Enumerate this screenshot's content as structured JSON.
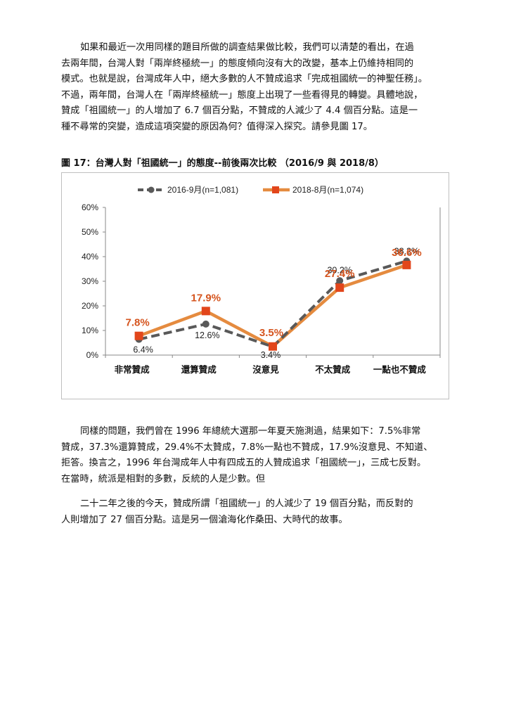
{
  "paragraph1": {
    "lines": [
      "如果和最近一次用同樣的題目所做的調查結果做比較，我們可以清楚的看出，在過",
      "去兩年間，台灣人對「兩岸終極統一」的態度傾向沒有大的改變，基本上仍維持相同的",
      "模式。也就是說，台灣成年人中，絕大多數的人不贊成追求「完成祖國統一的神聖任務」。",
      "不過，兩年間，台灣人在「兩岸終極統一」態度上出現了一些看得見的轉變。具體地說，",
      "贊成「祖國統一」的人增加了 6.7 個百分點，不贊成的人減少了 4.4 個百分點。這是一",
      "種不尋常的突變，造成這項突變的原因為何？值得深入探究。請參見圖 17。"
    ]
  },
  "figure_caption": "圖 17：台灣人對「祖國統一」的態度--前後兩次比較 （2016/9 與 2018/8）",
  "chart_data": {
    "type": "line",
    "categories": [
      "非常贊成",
      "還算贊成",
      "沒意見",
      "不太贊成",
      "一點也不贊成"
    ],
    "series": [
      {
        "name": "2016-9月(n=1,081)",
        "values": [
          6.4,
          12.6,
          3.4,
          30.2,
          38.2
        ],
        "labels": [
          "6.4%",
          "12.6%",
          "3.4%",
          "30.2%",
          "38.2%"
        ],
        "color": "#595959",
        "dash": true
      },
      {
        "name": "2018-8月(n=1,074)",
        "values": [
          7.8,
          17.9,
          3.5,
          27.4,
          36.6
        ],
        "labels": [
          "7.8%",
          "17.9%",
          "3.5%",
          "27.4%",
          "36.6%"
        ],
        "color": "#e58b3f",
        "marker_color": "#e2461b",
        "dash": false
      }
    ],
    "y_ticks": [
      "0%",
      "10%",
      "20%",
      "30%",
      "40%",
      "50%",
      "60%"
    ],
    "ylim": [
      0,
      60
    ],
    "grid": false,
    "legend_position": "top"
  },
  "paragraph2": {
    "lines": [
      "同樣的問題，我們曾在 1996 年總統大選那一年夏天施測過，結果如下：7.5%非常",
      "贊成，37.3%還算贊成，29.4%不太贊成，7.8%一點也不贊成，17.9%沒意見、不知道、",
      "拒答。換言之，1996 年台灣成年人中有四成五的人贊成追求「祖國統一」，三成七反對。",
      "在當時，統派是相對的多數，反統的人是少數。但"
    ]
  },
  "paragraph3": {
    "lines": [
      "二十二年之後的今天，贊成所謂「祖國統一」的人減少了 19 個百分點，而反對的",
      "人則增加了 27 個百分點。這是另一個滄海化作桑田、大時代的故事。"
    ]
  }
}
